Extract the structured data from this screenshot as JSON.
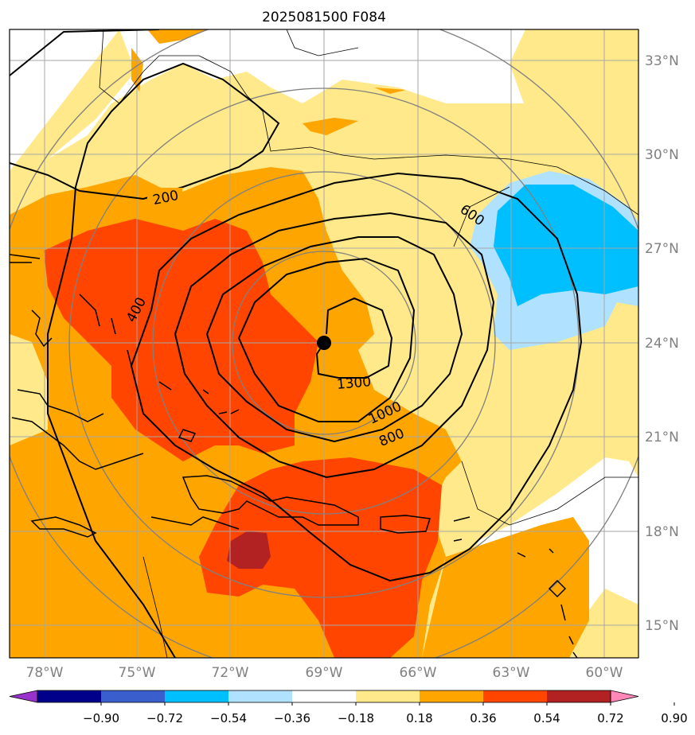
{
  "title": "2025081500 F084",
  "lat_labels": [
    "33°N",
    "30°N",
    "27°N",
    "24°N",
    "21°N",
    "18°N",
    "15°N"
  ],
  "lon_labels": [
    "78°W",
    "75°W",
    "72°W",
    "69°W",
    "66°W",
    "63°W",
    "60°W"
  ],
  "contour_labels": [
    "200",
    "400",
    "600",
    "800",
    "1000",
    "1300"
  ],
  "colorbar": {
    "ticks": [
      "−0.90",
      "−0.72",
      "−0.54",
      "−0.36",
      "−0.18",
      "0.18",
      "0.36",
      "0.54",
      "0.72",
      "0.90"
    ],
    "colors": [
      "#9932cc",
      "#00008b",
      "#3a5fcd",
      "#00bfff",
      "#b0e2ff",
      "#ffffff",
      "#ffe98a",
      "#ffa500",
      "#ff4500",
      "#b22222",
      "#ff88b8"
    ]
  },
  "center_marker": {
    "lat": 24.0,
    "lon": -69.0
  }
}
